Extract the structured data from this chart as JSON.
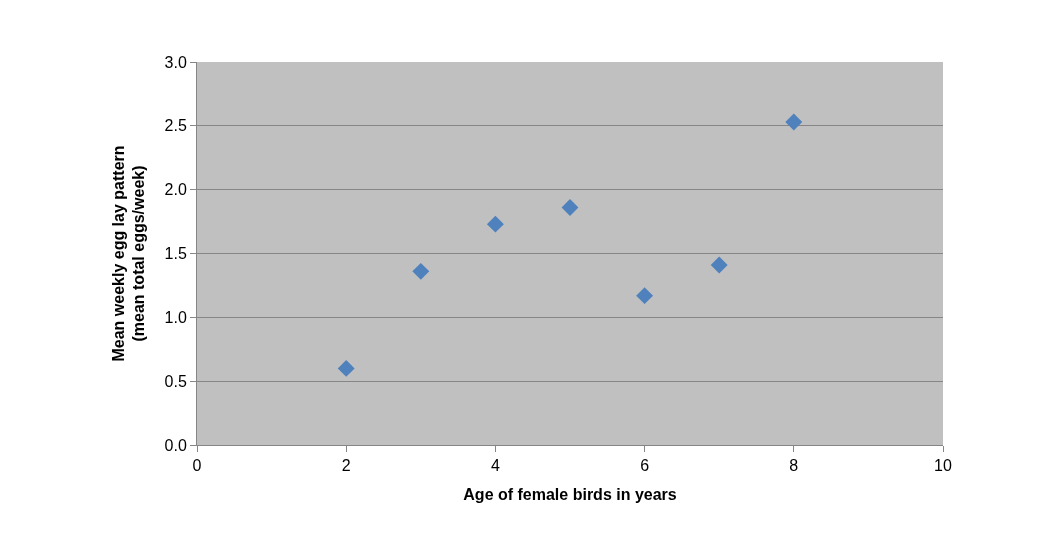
{
  "chart_data": {
    "type": "scatter",
    "xlabel": "Age of female birds in years",
    "ylabel": "Mean weekly egg lay pattern (mean total eggs/week)",
    "x": [
      2,
      3,
      4,
      5,
      6,
      7,
      8
    ],
    "series": [
      {
        "color": "#4f81bd",
        "values": [
          0.6,
          1.36,
          1.73,
          1.86,
          1.17,
          1.41,
          2.53
        ]
      }
    ],
    "xlim": [
      0,
      10
    ],
    "xticks": [
      0,
      2,
      4,
      6,
      8,
      10
    ],
    "ylim": [
      0,
      3
    ],
    "yticks": [
      {
        "value": 0,
        "label": "0.0"
      },
      {
        "value": 0.5,
        "label": "0.5"
      },
      {
        "value": 1,
        "label": "1.0"
      },
      {
        "value": 1.5,
        "label": "1.5"
      },
      {
        "value": 2,
        "label": "2.0"
      },
      {
        "value": 2.5,
        "label": "2.5"
      },
      {
        "value": 3,
        "label": "3.0"
      }
    ],
    "grid": "y",
    "marker": "diamond"
  }
}
